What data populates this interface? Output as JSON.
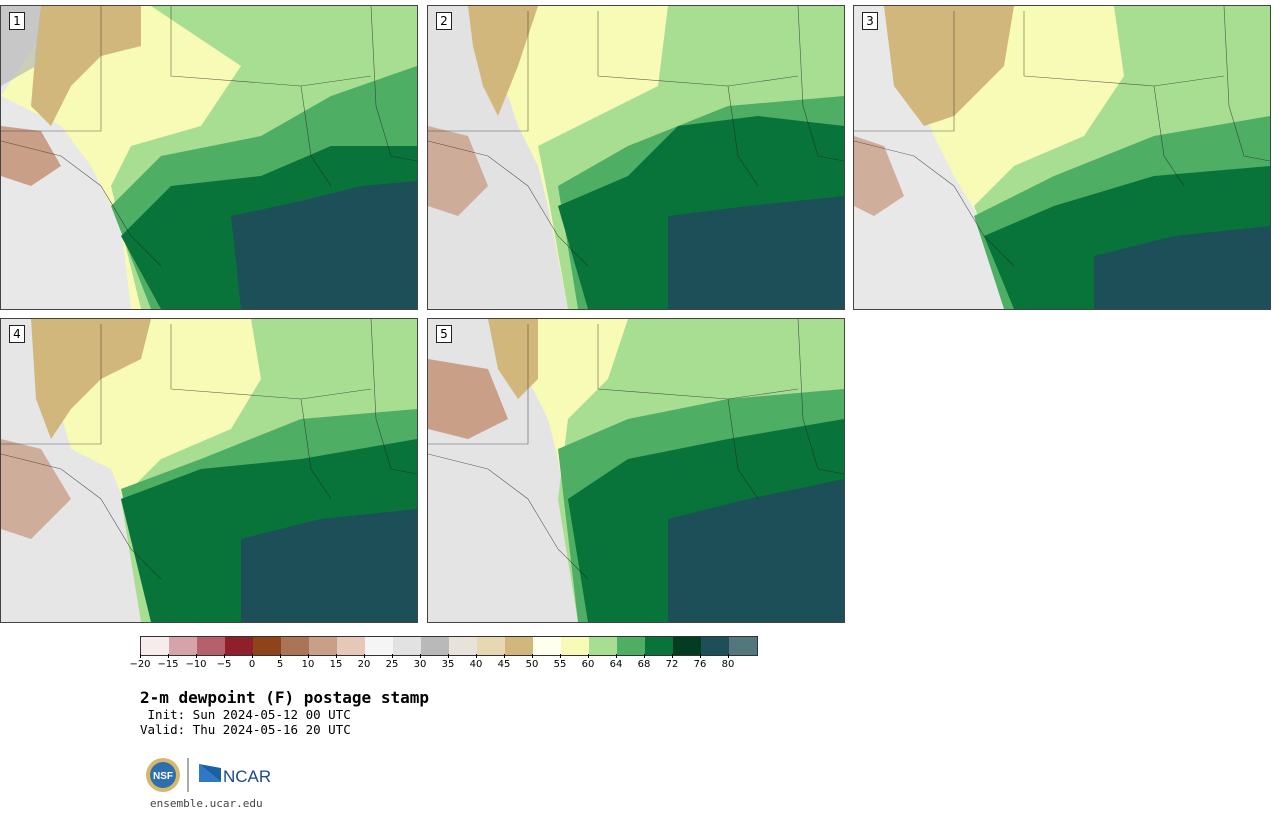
{
  "panels": [
    {
      "label": "1"
    },
    {
      "label": "2"
    },
    {
      "label": "3"
    },
    {
      "label": "4"
    },
    {
      "label": "5"
    }
  ],
  "colorbar": {
    "ticks": [
      "−20",
      "−15",
      "−10",
      "−5",
      "0",
      "5",
      "10",
      "15",
      "20",
      "25",
      "30",
      "35",
      "40",
      "45",
      "50",
      "55",
      "60",
      "64",
      "68",
      "72",
      "76",
      "80"
    ],
    "colors": [
      "#f7ecec",
      "#d4a4aa",
      "#b5606a",
      "#8f1f2a",
      "#8c4418",
      "#ab7555",
      "#c99f88",
      "#e6c8b8",
      "#f5f5f5",
      "#e2e2e2",
      "#b9b9b9",
      "#e7e3d9",
      "#e6d8b2",
      "#d2b77c",
      "#ffffee",
      "#f8fbb5",
      "#a7de91",
      "#4eae64",
      "#087439",
      "#023d22",
      "#1c4f57",
      "#52787d"
    ]
  },
  "title": "2-m dewpoint (F) postage stamp",
  "init": " Init: Sun 2024-05-12 00 UTC",
  "valid": "Valid: Thu 2024-05-16 20 UTC",
  "logos": {
    "nsf": "NSF",
    "ncar": "NCAR"
  },
  "website": "ensemble.ucar.edu"
}
